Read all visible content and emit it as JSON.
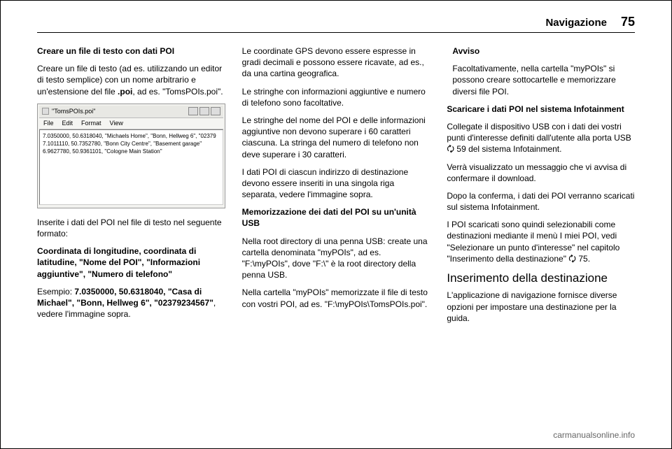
{
  "header": {
    "title": "Navigazione",
    "page_number": "75"
  },
  "col1": {
    "heading1": "Creare un file di testo con dati POI",
    "p1": "Creare un file di testo (ad es. utilizzando un editor di testo semplice) con un nome arbitrario e un'estensione del file .poi, ad es. \"TomsPOIs.poi\".",
    "screenshot": {
      "title": "\"TomsPOIs.poi\"",
      "menu": [
        "File",
        "Edit",
        "Format",
        "View"
      ],
      "lines": [
        "7.0350000, 50.6318040, \"Michaels  Home\", \"Bonn, Hellweg 6\", \"02379",
        "7.1011110, 50.7352780, \"Bonn City Centre\", \"Basement garage\"",
        "6.9627780, 50.9361101, \"Cologne Main Station\""
      ]
    },
    "p2": "Inserite i dati del POI nel file di testo nel seguente formato:",
    "p3": "Coordinata di longitudine, coordinata di latitudine, \"Nome del POI\", \"Informazioni aggiuntive\", \"Numero di telefono\"",
    "p4": "Esempio: 7.0350000, 50.6318040, \"Casa di Michael\", \"Bonn, Hellweg 6\", \"02379234567\", vedere l'immagine sopra."
  },
  "col2": {
    "p1": "Le coordinate GPS devono essere espresse in gradi decimali e possono essere ricavate, ad es., da una cartina geografica.",
    "p2": "Le stringhe con informazioni aggiuntive e numero di telefono sono facoltative.",
    "p3": "Le stringhe del nome del POI e delle informazioni aggiuntive non devono superare i 60 caratteri ciascuna. La stringa del numero di telefono non deve superare i 30 caratteri.",
    "p4": "I dati POI di ciascun indirizzo di destinazione devono essere inseriti in una singola riga separata, vedere l'immagine sopra.",
    "heading2": "Memorizzazione dei dati del POI su un'unità USB",
    "p5": "Nella root directory di una penna USB: create una cartella denominata \"myPOIs\", ad es. \"F:\\myPOIs\", dove \"F:\\\" è la root directory della penna USB.",
    "p6": "Nella cartella \"myPOIs\" memorizzate il file di testo con vostri POI, ad es. \"F:\\myPOIs\\TomsPOIs.poi\"."
  },
  "col3": {
    "notice_title": "Avviso",
    "notice_body": "Facoltativamente, nella cartella \"myPOIs\" si possono creare sottocartelle e memorizzare diversi file POI.",
    "heading3": "Scaricare i dati POI nel sistema Infotainment",
    "p1a": "Collegate il dispositivo USB con i dati dei vostri punti d'interesse definiti dall'utente alla porta USB ",
    "p1_ref": "3",
    "p1b": " 59 del sistema Infotainment.",
    "p2": "Verrà visualizzato un messaggio che vi avvisa di confermare il download.",
    "p3": "Dopo la conferma, i dati dei POI verranno scaricati sul sistema Infotainment.",
    "p4a": "I POI scaricati sono quindi selezionabili come destinazioni mediante il menù I miei POI, vedi \"Selezionare un punto d'interesse\" nel capitolo \"Inserimento della destinazione\" ",
    "p4_ref": "3",
    "p4b": " 75.",
    "section_heading": "Inserimento della destinazione",
    "p5": "L'applicazione di navigazione fornisce diverse opzioni per impostare una destinazione per la guida."
  },
  "footer": "carmanualsonline.info",
  "colors": {
    "text": "#000000",
    "background": "#ffffff",
    "border": "#000000",
    "screenshot_bg": "#f2f2ef",
    "footer_text": "#666666"
  }
}
